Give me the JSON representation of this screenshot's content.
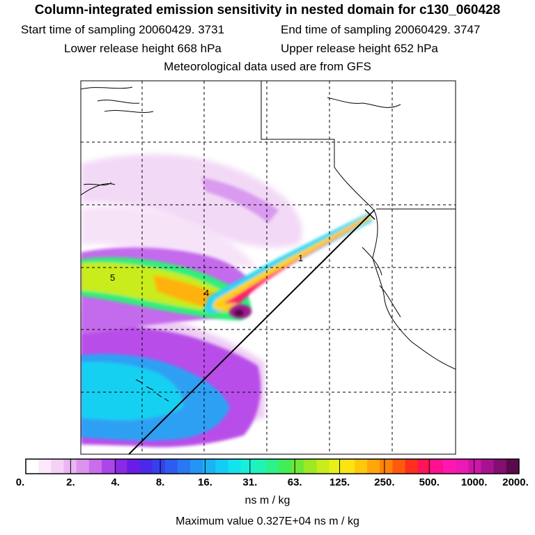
{
  "title": "Column-integrated emission sensitivity in nested domain for c130_060428",
  "sampling": {
    "start": "Start time of sampling 20060429.  3731",
    "end": "End time of sampling 20060429.  3747"
  },
  "release": {
    "lower": "Lower release height  668 hPa",
    "upper": "Upper release height  652 hPa"
  },
  "met_note": "Meteorological data used are from GFS",
  "plume_labels": [
    "1",
    "4",
    "5"
  ],
  "colorbar": {
    "tick_labels": [
      "0.",
      "2.",
      "4.",
      "8.",
      "16.",
      "31.",
      "63.",
      "125.",
      "250.",
      "500.",
      "1000.",
      "2000."
    ],
    "colors": [
      "#ffffff",
      "#fbe9fb",
      "#f4d2f6",
      "#eab6f2",
      "#dc93ee",
      "#c96ded",
      "#ac46ea",
      "#8b2ae6",
      "#6a1ce6",
      "#4a2ae8",
      "#3640ec",
      "#2e5cf0",
      "#2a78f3",
      "#2495f5",
      "#1cb2f6",
      "#14cdf6",
      "#12e3ef",
      "#18f0d9",
      "#1ff4b6",
      "#2df28a",
      "#42ec57",
      "#6ee834",
      "#9ee824",
      "#c8ec1c",
      "#e8f016",
      "#fbe411",
      "#ffc80d",
      "#ffa60b",
      "#ff820a",
      "#ff5a0c",
      "#ff2e1e",
      "#ff1458",
      "#ff1090",
      "#ff18b0",
      "#ec1ab4",
      "#cc16a6",
      "#a81290",
      "#820e70",
      "#5a0a4c"
    ],
    "units": "ns m / kg"
  },
  "max_value": "Maximum value  0.327E+04 ns m / kg"
}
